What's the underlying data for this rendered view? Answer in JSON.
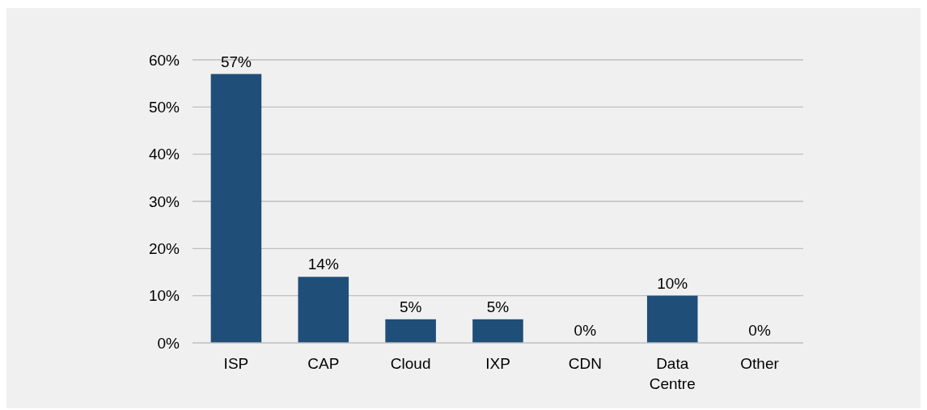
{
  "chart_data": {
    "type": "bar",
    "categories": [
      "ISP",
      "CAP",
      "Cloud",
      "IXP",
      "CDN",
      "Data Centre",
      "Other"
    ],
    "values": [
      57,
      14,
      5,
      5,
      0,
      10,
      0
    ],
    "color": "#1f4e79",
    "ylim": [
      0,
      60
    ],
    "yticks": [
      {
        "value": 0,
        "label": "0%"
      },
      {
        "value": 10,
        "label": "10%"
      },
      {
        "value": 20,
        "label": "20%"
      },
      {
        "value": 30,
        "label": "30%"
      },
      {
        "value": 40,
        "label": "40%"
      },
      {
        "value": 50,
        "label": "50%"
      },
      {
        "value": 60,
        "label": "60%"
      }
    ],
    "grid": "y",
    "value_labels": [
      "57%",
      "14%",
      "5%",
      "5%",
      "0%",
      "10%",
      "0%"
    ]
  }
}
